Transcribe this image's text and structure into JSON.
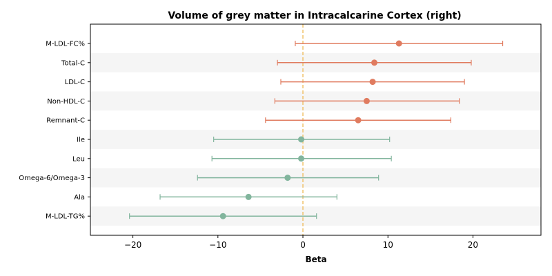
{
  "chart_data": {
    "type": "forest",
    "title": "Volume of grey matter in Intracalcarine Cortex (right)",
    "xlabel": "Beta",
    "xlim": [
      -25,
      28
    ],
    "xticks": [
      -20,
      -10,
      0,
      10,
      20
    ],
    "xtick_labels": [
      "−20",
      "−10",
      "0",
      "10",
      "20"
    ],
    "reference_line": 0,
    "reference_color": "#f0c36d",
    "grid": false,
    "alternating_row_bands": true,
    "band_color": "#f5f5f5",
    "colors": {
      "positive": "#e07b5f",
      "negative": "#82b59d"
    },
    "rows": [
      {
        "label": "M-LDL-FC%",
        "beta": 11.3,
        "lo": -0.9,
        "hi": 23.5,
        "group": "positive"
      },
      {
        "label": "Total-C",
        "beta": 8.4,
        "lo": -3.0,
        "hi": 19.8,
        "group": "positive"
      },
      {
        "label": "LDL-C",
        "beta": 8.2,
        "lo": -2.6,
        "hi": 19.0,
        "group": "positive"
      },
      {
        "label": "Non-HDL-C",
        "beta": 7.5,
        "lo": -3.3,
        "hi": 18.4,
        "group": "positive"
      },
      {
        "label": "Remnant-C",
        "beta": 6.5,
        "lo": -4.4,
        "hi": 17.4,
        "group": "positive"
      },
      {
        "label": "Ile",
        "beta": -0.2,
        "lo": -10.5,
        "hi": 10.2,
        "group": "negative"
      },
      {
        "label": "Leu",
        "beta": -0.2,
        "lo": -10.7,
        "hi": 10.4,
        "group": "negative"
      },
      {
        "label": "Omega-6/Omega-3",
        "beta": -1.8,
        "lo": -12.4,
        "hi": 8.9,
        "group": "negative"
      },
      {
        "label": "Ala",
        "beta": -6.4,
        "lo": -16.8,
        "hi": 4.0,
        "group": "negative"
      },
      {
        "label": "M-LDL-TG%",
        "beta": -9.4,
        "lo": -20.4,
        "hi": 1.6,
        "group": "negative"
      }
    ]
  }
}
